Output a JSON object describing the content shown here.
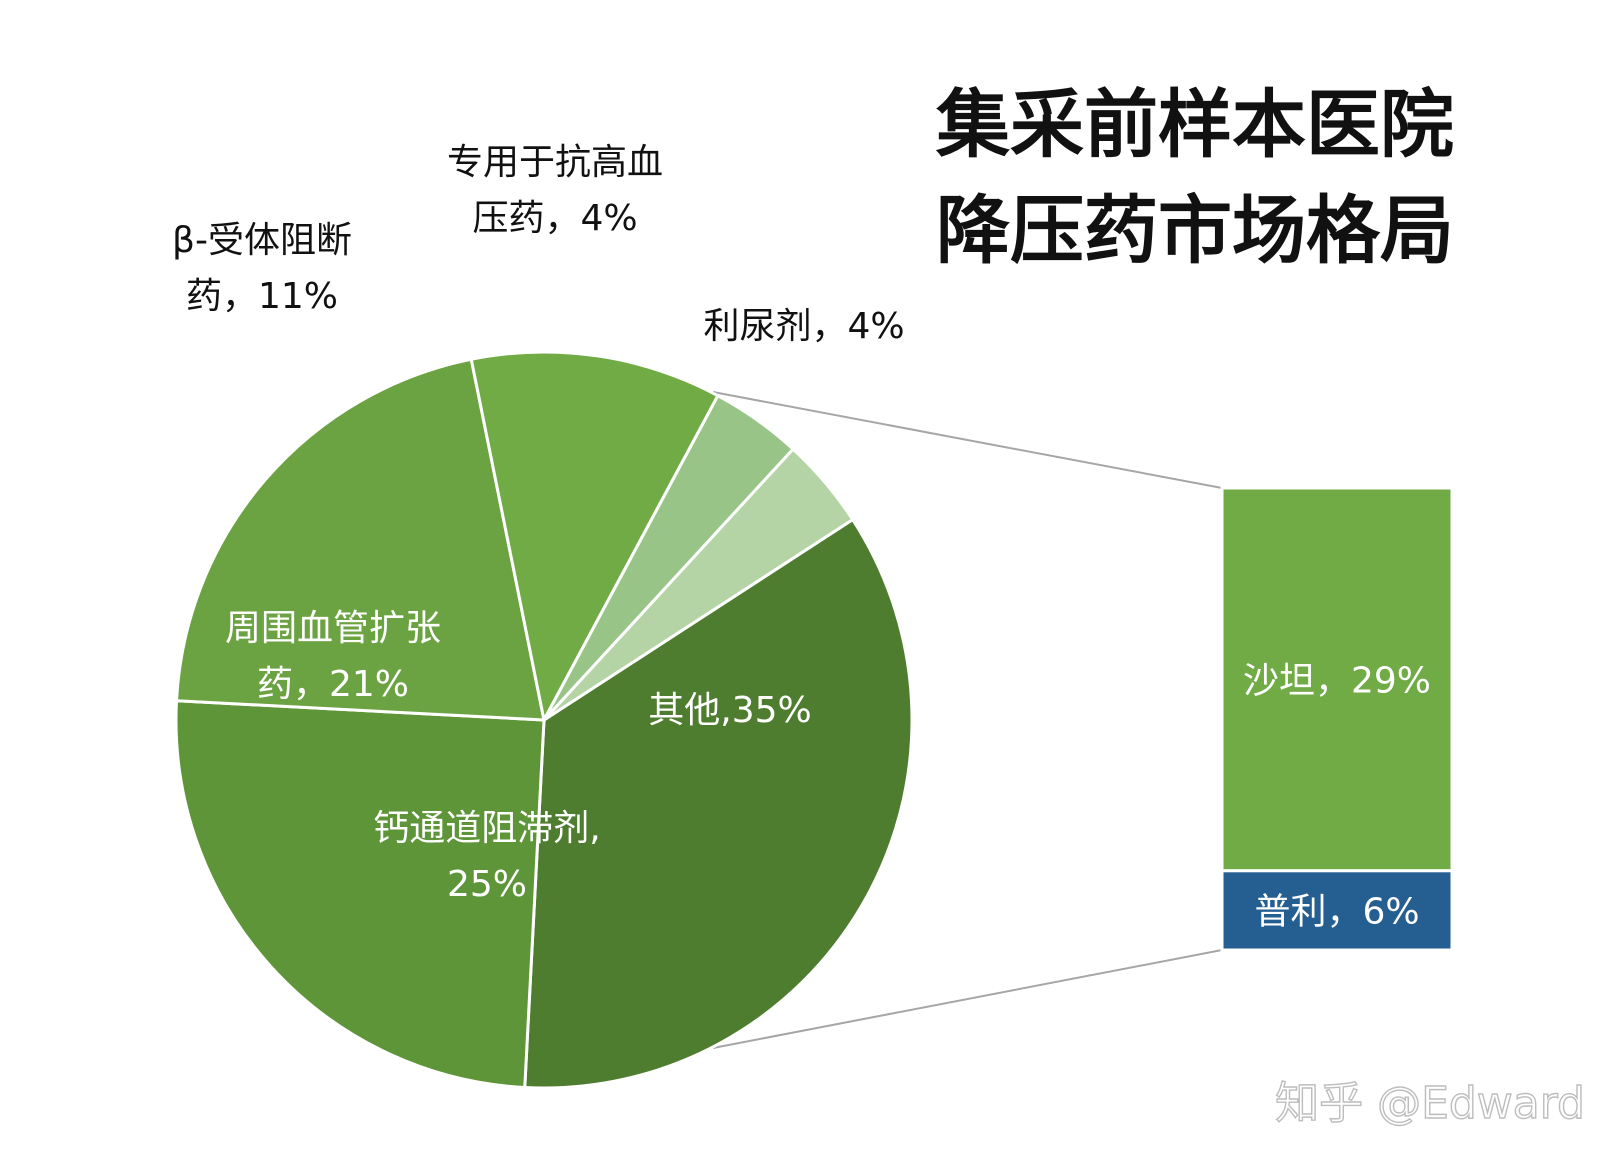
{
  "chart_data": {
    "type": "pie",
    "title": [
      "集采前样本医院",
      "降压药市场格局"
    ],
    "slices": [
      {
        "name": "其他",
        "value": 35,
        "label": [
          "其他,35%"
        ],
        "color": "#4f7d2f"
      },
      {
        "name": "钙通道阻滞剂",
        "value": 25,
        "label": [
          "钙通道阻滞剂,",
          "25%"
        ],
        "color": "#5f9539"
      },
      {
        "name": "周围血管扩张药",
        "value": 21,
        "label": [
          "周围血管扩张",
          "药，21%"
        ],
        "color": "#6ba342"
      },
      {
        "name": "β-受体阻断药",
        "value": 11,
        "label": [
          "β-受体阻断",
          "药，11%"
        ],
        "color": "#70ab46"
      },
      {
        "name": "专用于抗高血压药",
        "value": 4,
        "label": [
          "专用于抗高血",
          "压药，4%"
        ],
        "color": "#99c488"
      },
      {
        "name": "利尿剂",
        "value": 4,
        "label": [
          "利尿剂，4%"
        ],
        "color": "#b4d4a6"
      }
    ],
    "breakdown": {
      "of": "其他",
      "segments": [
        {
          "name": "沙坦",
          "value": 29,
          "label": "沙坦，29%",
          "color": "#70ab46"
        },
        {
          "name": "普利",
          "value": 6,
          "label": "普利，6%",
          "color": "#255e91"
        }
      ]
    }
  },
  "watermark": "知乎 @Edward"
}
